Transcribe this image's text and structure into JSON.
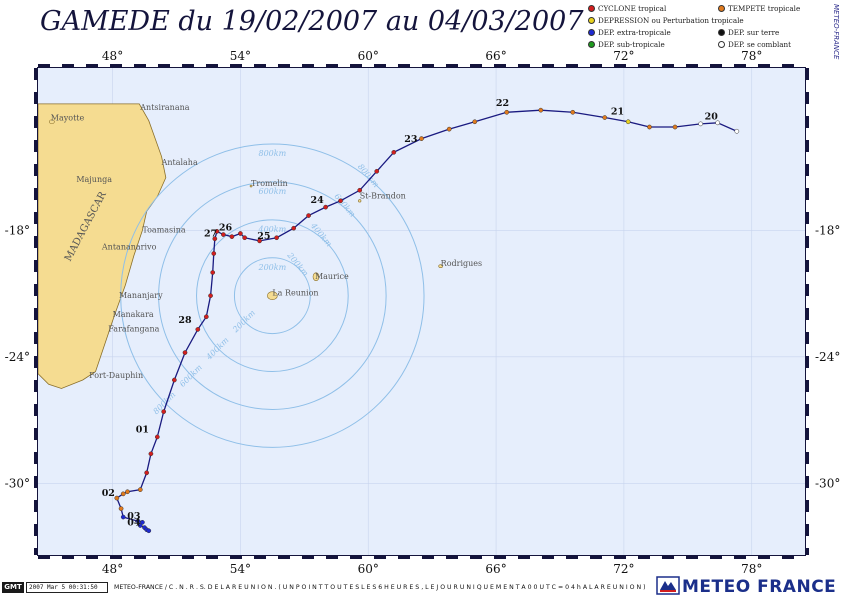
{
  "title": "GAMEDE du 19/02/2007 au 04/03/2007",
  "side_credit": "METEO-FRANCE",
  "legend": [
    {
      "label": "CYCLONE tropical",
      "color": "#d21e1e"
    },
    {
      "label": "TEMPETE tropicale",
      "color": "#e07a1e"
    },
    {
      "label": "DEPRESSION ou Perturbation tropicale",
      "color": "#e8d21e"
    },
    {
      "label": "DEP. extra-tropicale",
      "color": "#1e2ad2"
    },
    {
      "label": "DEP. sur terre",
      "color": "#111111"
    },
    {
      "label": "DEP. sub-tropicale",
      "color": "#1e9a1e"
    },
    {
      "label": "DEP. se comblant",
      "color": "#ffffff"
    }
  ],
  "axes": {
    "lon_ticks": [
      "48°",
      "54°",
      "60°",
      "66°",
      "72°",
      "78°"
    ],
    "lat_ticks": [
      "-18°",
      "-24°",
      "-30°"
    ],
    "lon_range": [
      44.5,
      80.5
    ],
    "lat_range": [
      -33.4,
      -10.3
    ]
  },
  "colors": {
    "sea": "#e6eefc",
    "land": "#f5dc91",
    "coast": "#8a6f2a",
    "track": "#1a1a80",
    "rings": "#8fbfe8",
    "frame": "#14143c"
  },
  "places": [
    {
      "name": "Mayotte",
      "lon": 45.1,
      "lat": -12.8
    },
    {
      "name": "Antsiranana",
      "lon": 49.3,
      "lat": -12.3
    },
    {
      "name": "Antalaha",
      "lon": 50.3,
      "lat": -14.9
    },
    {
      "name": "Majunga",
      "lon": 46.3,
      "lat": -15.7
    },
    {
      "name": "Toamasina",
      "lon": 49.4,
      "lat": -18.1
    },
    {
      "name": "Antananarivo",
      "lon": 47.5,
      "lat": -18.9
    },
    {
      "name": "MADAGASCAR",
      "lon": 46.0,
      "lat": -19.5
    },
    {
      "name": "Mananjary",
      "lon": 48.3,
      "lat": -21.2
    },
    {
      "name": "Manakara",
      "lon": 48.0,
      "lat": -22.1
    },
    {
      "name": "Farafangana",
      "lon": 47.8,
      "lat": -22.8
    },
    {
      "name": "Fort-Dauphin",
      "lon": 46.9,
      "lat": -25.0
    },
    {
      "name": "Tromelin",
      "lon": 54.5,
      "lat": -15.9
    },
    {
      "name": "St-Brandon",
      "lon": 59.6,
      "lat": -16.5
    },
    {
      "name": "Maurice",
      "lon": 57.5,
      "lat": -20.3
    },
    {
      "name": "La Reunion",
      "lon": 55.5,
      "lat": -21.1
    },
    {
      "name": "Rodrigues",
      "lon": 63.4,
      "lat": -19.7
    }
  ],
  "rings": {
    "center": {
      "lon": 55.5,
      "lat": -21.1
    },
    "radii_km": [
      200,
      400,
      600,
      800
    ],
    "labels": [
      "200km",
      "400km",
      "600km",
      "800km"
    ]
  },
  "track": [
    {
      "lon": 77.3,
      "lat": -13.3,
      "cat": "comblant"
    },
    {
      "lon": 76.4,
      "lat": -12.9,
      "cat": "comblant"
    },
    {
      "lon": 75.6,
      "lat": -12.95,
      "cat": "comblant"
    },
    {
      "lon": 74.4,
      "lat": -13.1,
      "cat": "tempete"
    },
    {
      "lon": 73.2,
      "lat": -13.1,
      "cat": "tempete"
    },
    {
      "lon": 72.2,
      "lat": -12.85,
      "cat": "depression"
    },
    {
      "lon": 71.1,
      "lat": -12.65,
      "cat": "tempete"
    },
    {
      "lon": 69.6,
      "lat": -12.4,
      "cat": "tempete"
    },
    {
      "lon": 68.1,
      "lat": -12.3,
      "cat": "tempete"
    },
    {
      "lon": 66.5,
      "lat": -12.4,
      "cat": "tempete"
    },
    {
      "lon": 65.0,
      "lat": -12.85,
      "cat": "tempete"
    },
    {
      "lon": 63.8,
      "lat": -13.2,
      "cat": "tempete"
    },
    {
      "lon": 62.5,
      "lat": -13.65,
      "cat": "tempete"
    },
    {
      "lon": 61.2,
      "lat": -14.3,
      "cat": "cyclone"
    },
    {
      "lon": 60.4,
      "lat": -15.2,
      "cat": "cyclone"
    },
    {
      "lon": 59.6,
      "lat": -16.1,
      "cat": "cyclone"
    },
    {
      "lon": 58.7,
      "lat": -16.6,
      "cat": "cyclone"
    },
    {
      "lon": 58.0,
      "lat": -16.9,
      "cat": "cyclone"
    },
    {
      "lon": 57.2,
      "lat": -17.3,
      "cat": "cyclone"
    },
    {
      "lon": 56.5,
      "lat": -17.9,
      "cat": "cyclone"
    },
    {
      "lon": 55.7,
      "lat": -18.35,
      "cat": "cyclone"
    },
    {
      "lon": 54.9,
      "lat": -18.5,
      "cat": "cyclone"
    },
    {
      "lon": 54.2,
      "lat": -18.35,
      "cat": "cyclone"
    },
    {
      "lon": 54.0,
      "lat": -18.15,
      "cat": "cyclone"
    },
    {
      "lon": 53.6,
      "lat": -18.3,
      "cat": "cyclone"
    },
    {
      "lon": 53.2,
      "lat": -18.2,
      "cat": "cyclone"
    },
    {
      "lon": 52.9,
      "lat": -18.05,
      "cat": "cyclone"
    },
    {
      "lon": 52.8,
      "lat": -18.4,
      "cat": "cyclone"
    },
    {
      "lon": 52.75,
      "lat": -19.1,
      "cat": "cyclone"
    },
    {
      "lon": 52.7,
      "lat": -20.0,
      "cat": "cyclone"
    },
    {
      "lon": 52.6,
      "lat": -21.1,
      "cat": "cyclone"
    },
    {
      "lon": 52.4,
      "lat": -22.1,
      "cat": "cyclone"
    },
    {
      "lon": 52.0,
      "lat": -22.7,
      "cat": "cyclone"
    },
    {
      "lon": 51.4,
      "lat": -23.8,
      "cat": "cyclone"
    },
    {
      "lon": 50.9,
      "lat": -25.1,
      "cat": "cyclone"
    },
    {
      "lon": 50.4,
      "lat": -26.6,
      "cat": "cyclone"
    },
    {
      "lon": 50.1,
      "lat": -27.8,
      "cat": "cyclone"
    },
    {
      "lon": 49.8,
      "lat": -28.6,
      "cat": "cyclone"
    },
    {
      "lon": 49.6,
      "lat": -29.5,
      "cat": "cyclone"
    },
    {
      "lon": 49.3,
      "lat": -30.3,
      "cat": "tempete"
    },
    {
      "lon": 48.7,
      "lat": -30.4,
      "cat": "tempete"
    },
    {
      "lon": 48.5,
      "lat": -30.5,
      "cat": "tempete"
    },
    {
      "lon": 48.2,
      "lat": -30.7,
      "cat": "tempete"
    },
    {
      "lon": 48.4,
      "lat": -31.2,
      "cat": "tempete"
    },
    {
      "lon": 48.5,
      "lat": -31.6,
      "cat": "extra"
    },
    {
      "lon": 49.2,
      "lat": -31.8,
      "cat": "extra"
    },
    {
      "lon": 49.4,
      "lat": -31.85,
      "cat": "extra"
    },
    {
      "lon": 49.3,
      "lat": -32.0,
      "cat": "extra"
    },
    {
      "lon": 49.5,
      "lat": -32.1,
      "cat": "extra"
    },
    {
      "lon": 49.6,
      "lat": -32.2,
      "cat": "extra"
    },
    {
      "lon": 49.7,
      "lat": -32.25,
      "cat": "extra"
    }
  ],
  "day_labels": [
    {
      "text": "20",
      "lon": 76.1,
      "lat": -12.75
    },
    {
      "text": "21",
      "lon": 71.7,
      "lat": -12.5
    },
    {
      "text": "22",
      "lon": 66.3,
      "lat": -12.1
    },
    {
      "text": "23",
      "lon": 62.0,
      "lat": -13.8
    },
    {
      "text": "24",
      "lon": 57.6,
      "lat": -16.7
    },
    {
      "text": "25",
      "lon": 55.1,
      "lat": -18.4
    },
    {
      "text": "26",
      "lon": 53.3,
      "lat": -18.0
    },
    {
      "text": "27",
      "lon": 52.6,
      "lat": -18.3
    },
    {
      "text": "28",
      "lon": 51.4,
      "lat": -22.4
    },
    {
      "text": "01",
      "lon": 49.4,
      "lat": -27.6
    },
    {
      "text": "02",
      "lon": 47.8,
      "lat": -30.6
    },
    {
      "text": "03",
      "lon": 49.0,
      "lat": -31.7
    },
    {
      "text": "04",
      "lon": 49.0,
      "lat": -32.0
    }
  ],
  "footer": {
    "gmt_logo": "GMT",
    "timestamp": "2007 Mar 5 00:31:50",
    "note": "METEO-FRANCE / C . N . R . S.   D E   L A   R E U N I O N .   ( U N  P O I N T  T O U T E S  L E S  6 H E U R E S ,  L E  J O U R  U N I Q U E M E N T  A  0 0 U T C = 0 4 h  A  L A  R E U N I O N )",
    "brand": "METEO FRANCE"
  }
}
